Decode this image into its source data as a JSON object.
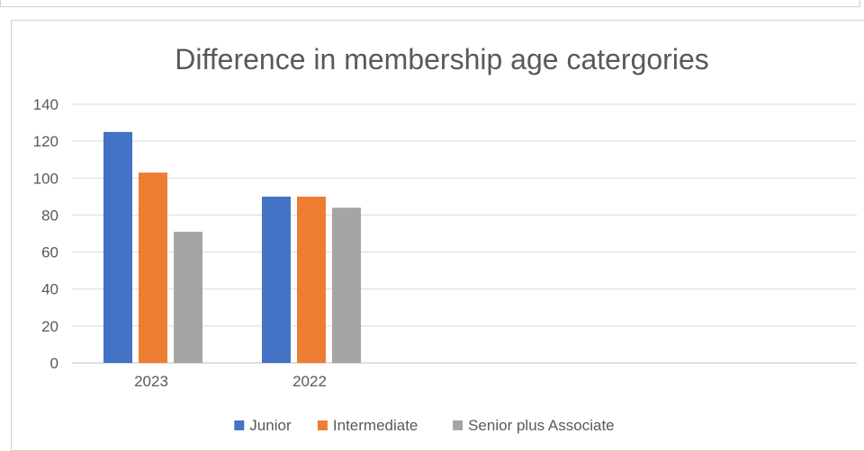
{
  "chart_data": {
    "type": "bar",
    "title": "Difference in membership age catergories",
    "categories": [
      "2023",
      "2022"
    ],
    "series": [
      {
        "name": "Junior",
        "values": [
          125,
          90
        ],
        "color": "#4472C4"
      },
      {
        "name": "Intermediate",
        "values": [
          103,
          90
        ],
        "color": "#ED7D31"
      },
      {
        "name": "Senior plus Associate",
        "values": [
          71,
          84
        ],
        "color": "#A5A5A5"
      }
    ],
    "yticks": [
      "0",
      "20",
      "40",
      "60",
      "80",
      "100",
      "120",
      "140"
    ],
    "ylim": [
      0,
      140
    ],
    "grid": true,
    "legend": "bottom"
  }
}
